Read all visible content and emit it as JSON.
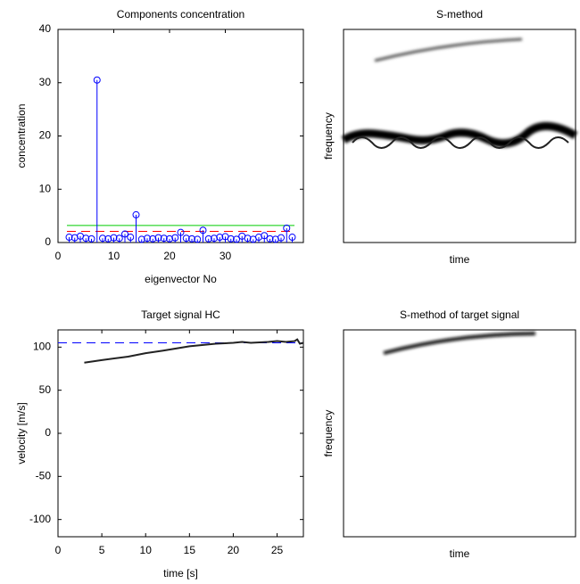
{
  "chart_data": [
    {
      "type": "stem",
      "title": "Components concentration",
      "xlabel": "eigenvector No",
      "ylabel": "concentration",
      "xlim": [
        0,
        44
      ],
      "xticks": [
        0,
        10,
        20,
        30
      ],
      "ylim": [
        0,
        40
      ],
      "yticks": [
        0,
        10,
        20,
        30,
        40
      ],
      "color": "#0000ff",
      "x": [
        2,
        3,
        4,
        5,
        6,
        7,
        8,
        9,
        10,
        11,
        12,
        13,
        14,
        15,
        16,
        17,
        18,
        19,
        20,
        21,
        22,
        23,
        24,
        25,
        26,
        27,
        28,
        29,
        30,
        31,
        32,
        33,
        34,
        35,
        36,
        37,
        38,
        39,
        40,
        41,
        42
      ],
      "values": [
        1.0,
        0.9,
        1.2,
        0.8,
        0.7,
        30.5,
        0.8,
        0.7,
        0.9,
        0.8,
        1.6,
        1.0,
        5.2,
        0.6,
        0.8,
        0.7,
        0.9,
        0.8,
        0.7,
        0.9,
        1.9,
        0.8,
        0.7,
        0.6,
        2.3,
        0.7,
        0.8,
        1.0,
        1.1,
        0.7,
        0.6,
        1.2,
        0.8,
        0.6,
        1.0,
        1.3,
        0.7,
        0.6,
        0.9,
        2.7,
        1.0
      ],
      "reference_lines": [
        {
          "value": 3.2,
          "color": "#00cc00",
          "style": "solid"
        },
        {
          "value": 2.1,
          "color": "#ff0000",
          "style": "dashed"
        }
      ]
    },
    {
      "type": "image",
      "title": "S-method",
      "xlabel": "time",
      "ylabel": "frequency"
    },
    {
      "type": "line",
      "title": "Target signal HC",
      "xlabel": "time [s]",
      "ylabel": "velocity [m/s]",
      "xlim": [
        0,
        28
      ],
      "xticks": [
        0,
        5,
        10,
        15,
        20,
        25
      ],
      "ylim": [
        -120,
        120
      ],
      "yticks": [
        -100,
        -50,
        0,
        50,
        100
      ],
      "series": [
        {
          "color": "#222222",
          "x": [
            3,
            5,
            8,
            10,
            12,
            15,
            18,
            20,
            21,
            22,
            24,
            25,
            26,
            27,
            27.3,
            27.6,
            28
          ],
          "values": [
            82,
            85,
            89,
            93,
            96,
            101,
            104,
            105,
            106,
            105,
            106,
            107,
            106,
            107,
            109,
            104,
            105
          ]
        }
      ],
      "reference_lines": [
        {
          "value": 105,
          "color": "#0000ff",
          "style": "dashed"
        }
      ]
    },
    {
      "type": "image",
      "title": "S-method of target signal",
      "xlabel": "time",
      "ylabel": "frequency"
    }
  ]
}
